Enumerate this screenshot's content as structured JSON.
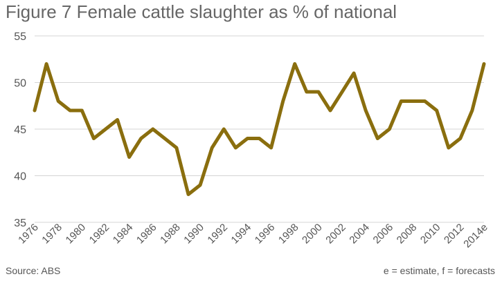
{
  "chart_data": {
    "type": "line",
    "title": "Figure 7 Female cattle slaughter as % of national",
    "xlabel": "",
    "ylabel": "",
    "ylim": [
      35,
      55
    ],
    "yticks": [
      35,
      40,
      45,
      50,
      55
    ],
    "grid": true,
    "x": [
      "1976",
      "1977",
      "1978",
      "1979",
      "1980",
      "1981",
      "1982",
      "1983",
      "1984",
      "1985",
      "1986",
      "1987",
      "1988",
      "1989",
      "1990",
      "1991",
      "1992",
      "1993",
      "1994",
      "1995",
      "1996",
      "1997",
      "1998",
      "1999",
      "2000",
      "2001",
      "2002",
      "2003",
      "2004",
      "2005",
      "2006",
      "2007",
      "2008",
      "2009",
      "2010",
      "2011",
      "2012",
      "2013",
      "2014e"
    ],
    "x_tick_labels": [
      "1976",
      "1978",
      "1980",
      "1982",
      "1984",
      "1986",
      "1988",
      "1990",
      "1992",
      "1994",
      "1996",
      "1998",
      "2000",
      "2002",
      "2004",
      "2006",
      "2008",
      "2010",
      "2012",
      "2014e"
    ],
    "series": [
      {
        "values": [
          47,
          52,
          48,
          47,
          47,
          44,
          45,
          46,
          42,
          44,
          45,
          44,
          43,
          38,
          39,
          43,
          45,
          43,
          44,
          44,
          43,
          48,
          52,
          49,
          49,
          47,
          49,
          51,
          47,
          44,
          45,
          48,
          48,
          48,
          47,
          43,
          44,
          47,
          52
        ],
        "color": "#8a6e0e"
      }
    ]
  },
  "footer": {
    "source": "Source: ABS",
    "note": "e = estimate, f = forecasts"
  }
}
